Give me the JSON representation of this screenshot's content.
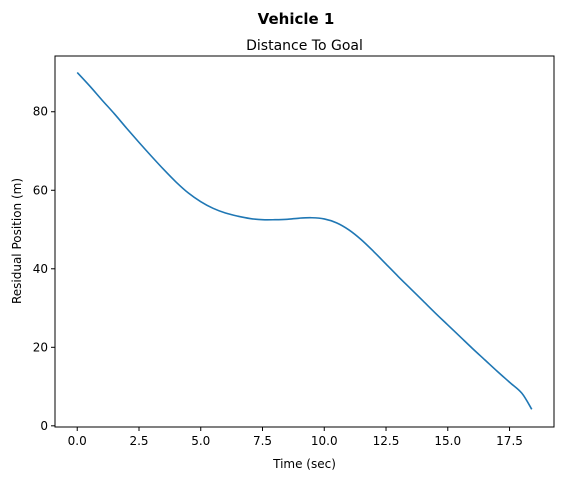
{
  "figure": {
    "suptitle": "Vehicle 1"
  },
  "chart_data": {
    "type": "line",
    "title": "Distance To Goal",
    "xlabel": "Time (sec)",
    "ylabel": "Residual Position (m)",
    "xlim": [
      -0.9,
      19.3
    ],
    "ylim": [
      -0.3,
      94.2
    ],
    "xticks": [
      0.0,
      2.5,
      5.0,
      7.5,
      10.0,
      12.5,
      15.0,
      17.5
    ],
    "xtick_labels": [
      "0.0",
      "2.5",
      "5.0",
      "7.5",
      "10.0",
      "12.5",
      "15.0",
      "17.5"
    ],
    "yticks": [
      0,
      20,
      40,
      60,
      80
    ],
    "ytick_labels": [
      "0",
      "20",
      "40",
      "60",
      "80"
    ],
    "grid": false,
    "colors": {
      "line": "#1f77b4"
    },
    "series": [
      {
        "x": [
          0.0,
          0.5,
          1.0,
          1.5,
          2.0,
          2.5,
          3.0,
          3.5,
          4.0,
          4.5,
          5.0,
          5.5,
          6.0,
          6.5,
          7.0,
          7.5,
          8.0,
          8.5,
          9.0,
          9.5,
          10.0,
          10.5,
          11.0,
          11.5,
          12.0,
          12.5,
          13.0,
          13.5,
          14.0,
          14.5,
          15.0,
          15.5,
          16.0,
          16.5,
          17.0,
          17.5,
          18.0,
          18.4
        ],
        "y": [
          90.0,
          86.6,
          83.0,
          79.5,
          75.8,
          72.2,
          68.7,
          65.3,
          62.1,
          59.3,
          57.1,
          55.4,
          54.2,
          53.4,
          52.8,
          52.5,
          52.5,
          52.6,
          52.9,
          53.0,
          52.7,
          51.7,
          49.9,
          47.4,
          44.4,
          41.2,
          38.0,
          34.9,
          31.8,
          28.7,
          25.7,
          22.7,
          19.7,
          16.8,
          13.9,
          11.1,
          8.3,
          4.2
        ]
      }
    ]
  }
}
